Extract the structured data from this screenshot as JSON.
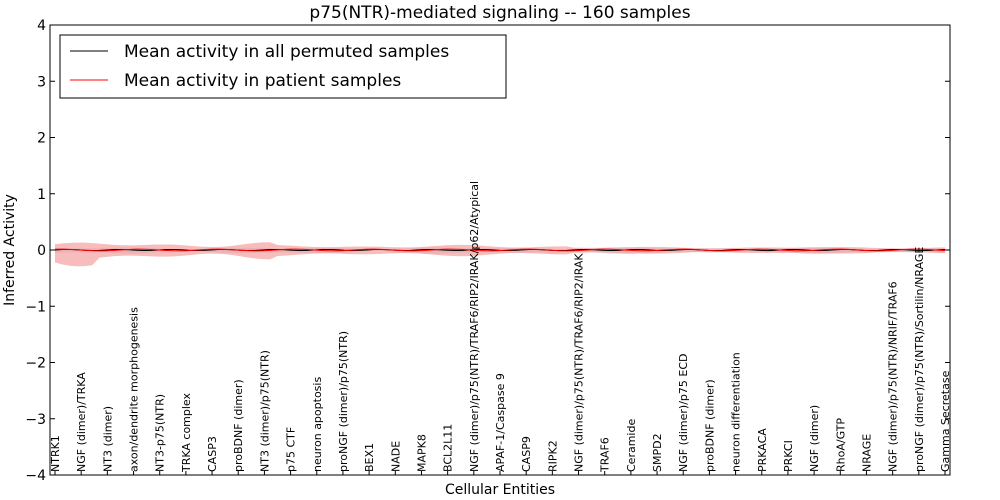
{
  "chart_data": {
    "type": "line",
    "title": "p75(NTR)-mediated signaling -- 160 samples",
    "xlabel": "Cellular Entities",
    "ylabel": "Inferred Activity",
    "ylim": [
      -4,
      4
    ],
    "yticks": [
      -4,
      -3,
      -2,
      -1,
      0,
      1,
      2,
      3,
      4
    ],
    "grid": false,
    "legend_position": "top-left",
    "colors": {
      "permuted_line": "#000000",
      "patient_line": "#ff0000",
      "patient_band": "#f4a5a5",
      "permuted_band": "#c8cbd4"
    },
    "series": [
      {
        "name": "Mean activity in all permuted samples",
        "color": "#000000",
        "mean": 0.0,
        "band": 0.05
      },
      {
        "name": "Mean activity in patient samples",
        "color": "#ff0000",
        "mean": 0.0,
        "band": 0.12
      }
    ],
    "categories": [
      "NTRK1",
      "NGF (dimer)/TRKA",
      "NT3 (dimer)",
      "axon/dendrite morphogenesis",
      "NT3-p75(NTR)",
      "TRKA complex",
      "CASP3",
      "proBDNF (dimer)",
      "NT3 (dimer)/p75(NTR)",
      "p75 CTF",
      "neuron apoptosis",
      "proNGF (dimer)/p75(NTR)",
      "BEX1",
      "NADE",
      "MAPK8",
      "BCL2L11",
      "NGF (dimer)/p75(NTR)/TRAF6/RIP2/IRAK/p62/Atypical",
      "APAF-1/Caspase 9",
      "CASP9",
      "RIPK2",
      "NGF (dimer)/p75(NTR)/TRAF6/RIP2/IRAK",
      "TRAF6",
      "Ceramide",
      "SMPD2",
      "NGF (dimer)/p75 ECD",
      "proBDNF (dimer)",
      "neuron differentiation",
      "PRKACA",
      "PRKCI",
      "NGF (dimer)",
      "RhoA/GTP",
      "NRAGE",
      "NGF (dimer)/p75(NTR)/NRIF/TRAF6",
      "proNGF (dimer)/p75(NTR)/Sortilin/NRAGE",
      "Gamma Secretase"
    ]
  }
}
